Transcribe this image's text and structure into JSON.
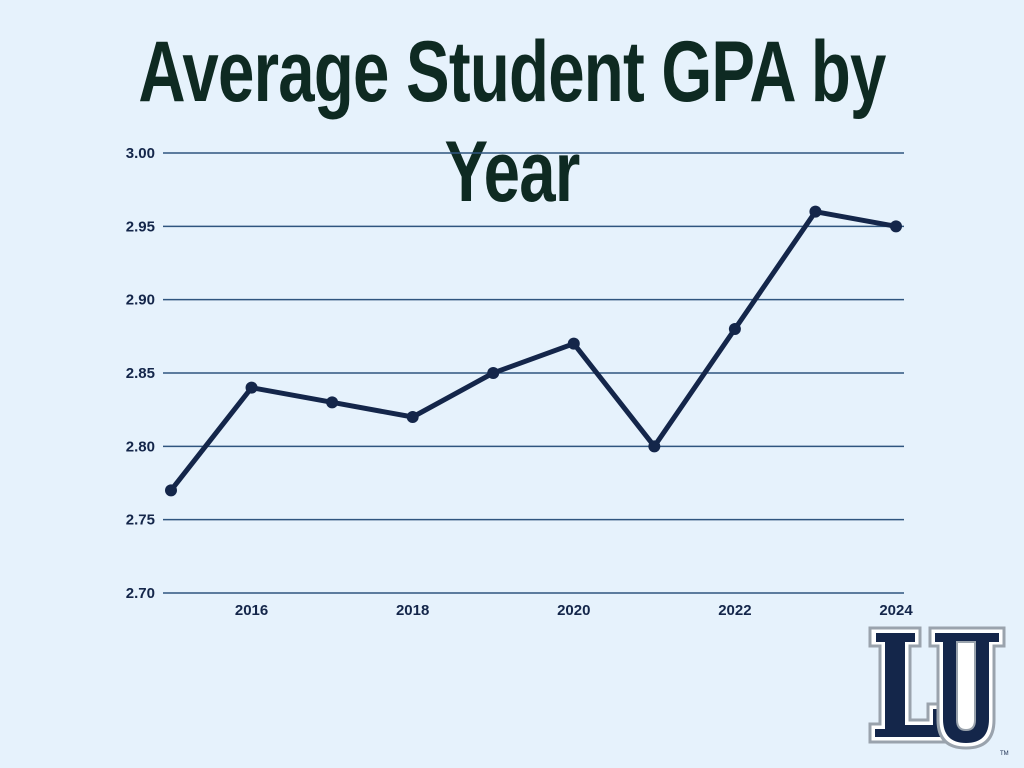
{
  "chart_data": {
    "type": "line",
    "title": "Average Student GPA by Year",
    "xlabel": "",
    "ylabel": "",
    "x": [
      2015,
      2016,
      2017,
      2018,
      2019,
      2020,
      2021,
      2022,
      2023,
      2024
    ],
    "series": [
      {
        "values": [
          2.77,
          2.84,
          2.83,
          2.82,
          2.85,
          2.87,
          2.8,
          2.88,
          2.96,
          2.95
        ]
      }
    ],
    "xlim": [
      2015,
      2024
    ],
    "ylim": [
      2.7,
      3.0
    ],
    "x_tick_labels": [
      "2016",
      "2018",
      "2020",
      "2022",
      "2024"
    ],
    "y_tick_labels": [
      "3.00",
      "2.95",
      "2.90",
      "2.85",
      "2.80",
      "2.75",
      "2.70"
    ],
    "grid": "horizontal",
    "legend": "none"
  },
  "colors": {
    "background": "#e6f2fc",
    "title": "#0e2a22",
    "line": "#14264a",
    "grid": "#2f557f",
    "tick_text": "#14264a"
  },
  "logo": {
    "text": "LU",
    "trademark": "TM"
  }
}
